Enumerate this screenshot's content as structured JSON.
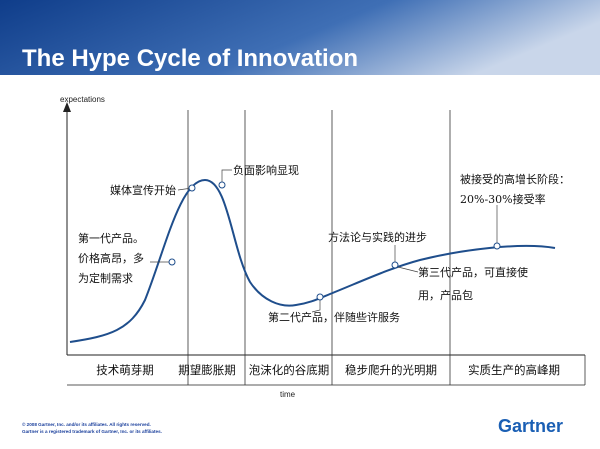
{
  "header": {
    "title": "The Hype Cycle of Innovation"
  },
  "axes": {
    "y_label": "expectations",
    "x_label": "time"
  },
  "phases": [
    "技术萌芽期",
    "期望膨胀期",
    "泡沫化的谷底期",
    "稳步爬升的光明期",
    "实质生产的高峰期"
  ],
  "annotations": [
    {
      "lines": [
        "第一代产品。",
        "价格高昂，多",
        "为定制需求"
      ]
    },
    {
      "lines": [
        "媒体宣传开始"
      ]
    },
    {
      "lines": [
        "负面影响显现"
      ]
    },
    {
      "lines": [
        "第二代产品，伴随些许服务"
      ]
    },
    {
      "lines": [
        "方法论与实践的进步"
      ]
    },
    {
      "lines": [
        "第三代产品，可直接使",
        "用，产品包"
      ]
    },
    {
      "lines": [
        "被接受的高增长阶段：",
        "20%-30%接受率"
      ]
    }
  ],
  "footer": {
    "lines": [
      "© 2008 Gartner, Inc. and/or its affiliates. All rights reserved.",
      "Gartner is a registered trademark of Gartner, Inc. or its affiliates."
    ],
    "logo": "Gartner"
  }
}
